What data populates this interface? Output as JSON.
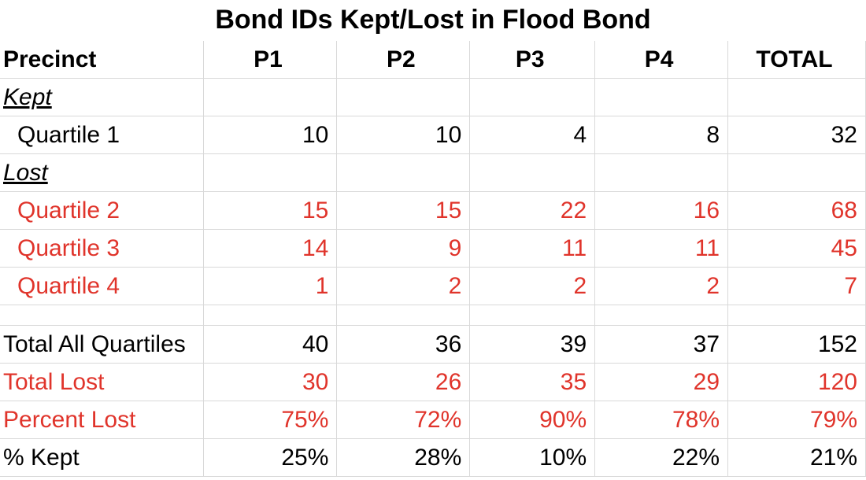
{
  "chart_data": {
    "type": "table",
    "title": "Bond IDs Kept/Lost in Flood Bond",
    "columns": [
      "Precinct",
      "P1",
      "P2",
      "P3",
      "P4",
      "TOTAL"
    ],
    "sections": {
      "kept": "Kept",
      "lost": "Lost"
    },
    "rows": {
      "q1": {
        "label": "Quartile 1",
        "values": [
          "10",
          "10",
          "4",
          "8",
          "32"
        ]
      },
      "q2": {
        "label": "Quartile 2",
        "values": [
          "15",
          "15",
          "22",
          "16",
          "68"
        ]
      },
      "q3": {
        "label": "Quartile 3",
        "values": [
          "14",
          "9",
          "11",
          "11",
          "45"
        ]
      },
      "q4": {
        "label": "Quartile 4",
        "values": [
          "1",
          "2",
          "2",
          "2",
          "7"
        ]
      },
      "total_all": {
        "label": "Total All Quartiles",
        "values": [
          "40",
          "36",
          "39",
          "37",
          "152"
        ]
      },
      "total_lost": {
        "label": "Total Lost",
        "values": [
          "30",
          "26",
          "35",
          "29",
          "120"
        ]
      },
      "pct_lost": {
        "label": "Percent Lost",
        "values": [
          "75%",
          "72%",
          "90%",
          "78%",
          "79%"
        ]
      },
      "pct_kept": {
        "label": "% Kept",
        "values": [
          "25%",
          "28%",
          "10%",
          "22%",
          "21%"
        ]
      }
    },
    "colors": {
      "lost": "#e0342b",
      "text": "#000000",
      "grid": "#d9d9d9"
    }
  }
}
